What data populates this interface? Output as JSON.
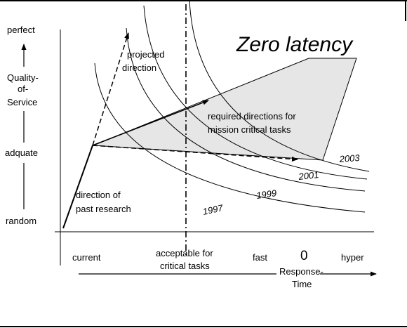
{
  "title": "Zero latency",
  "y_axis": {
    "label_lines": [
      "Quality-",
      "of-",
      "Service"
    ],
    "levels": {
      "top": "perfect",
      "middle": "adquate",
      "bottom": "random"
    }
  },
  "x_axis": {
    "label_lines": [
      "Response-",
      "Time"
    ],
    "categories": {
      "current": "current",
      "acceptable_lines": [
        "acceptable for",
        "critical tasks"
      ],
      "fast": "fast",
      "zero": "0",
      "hyper": "hyper"
    }
  },
  "curves": [
    {
      "year": "1997"
    },
    {
      "year": "1999"
    },
    {
      "year": "2001"
    },
    {
      "year": "2003"
    }
  ],
  "annotations": {
    "projected_lines": [
      "projected",
      "direction"
    ],
    "required_lines": [
      "required directions for",
      "mission critical tasks"
    ],
    "past_lines": [
      "direction of",
      "past research"
    ]
  }
}
